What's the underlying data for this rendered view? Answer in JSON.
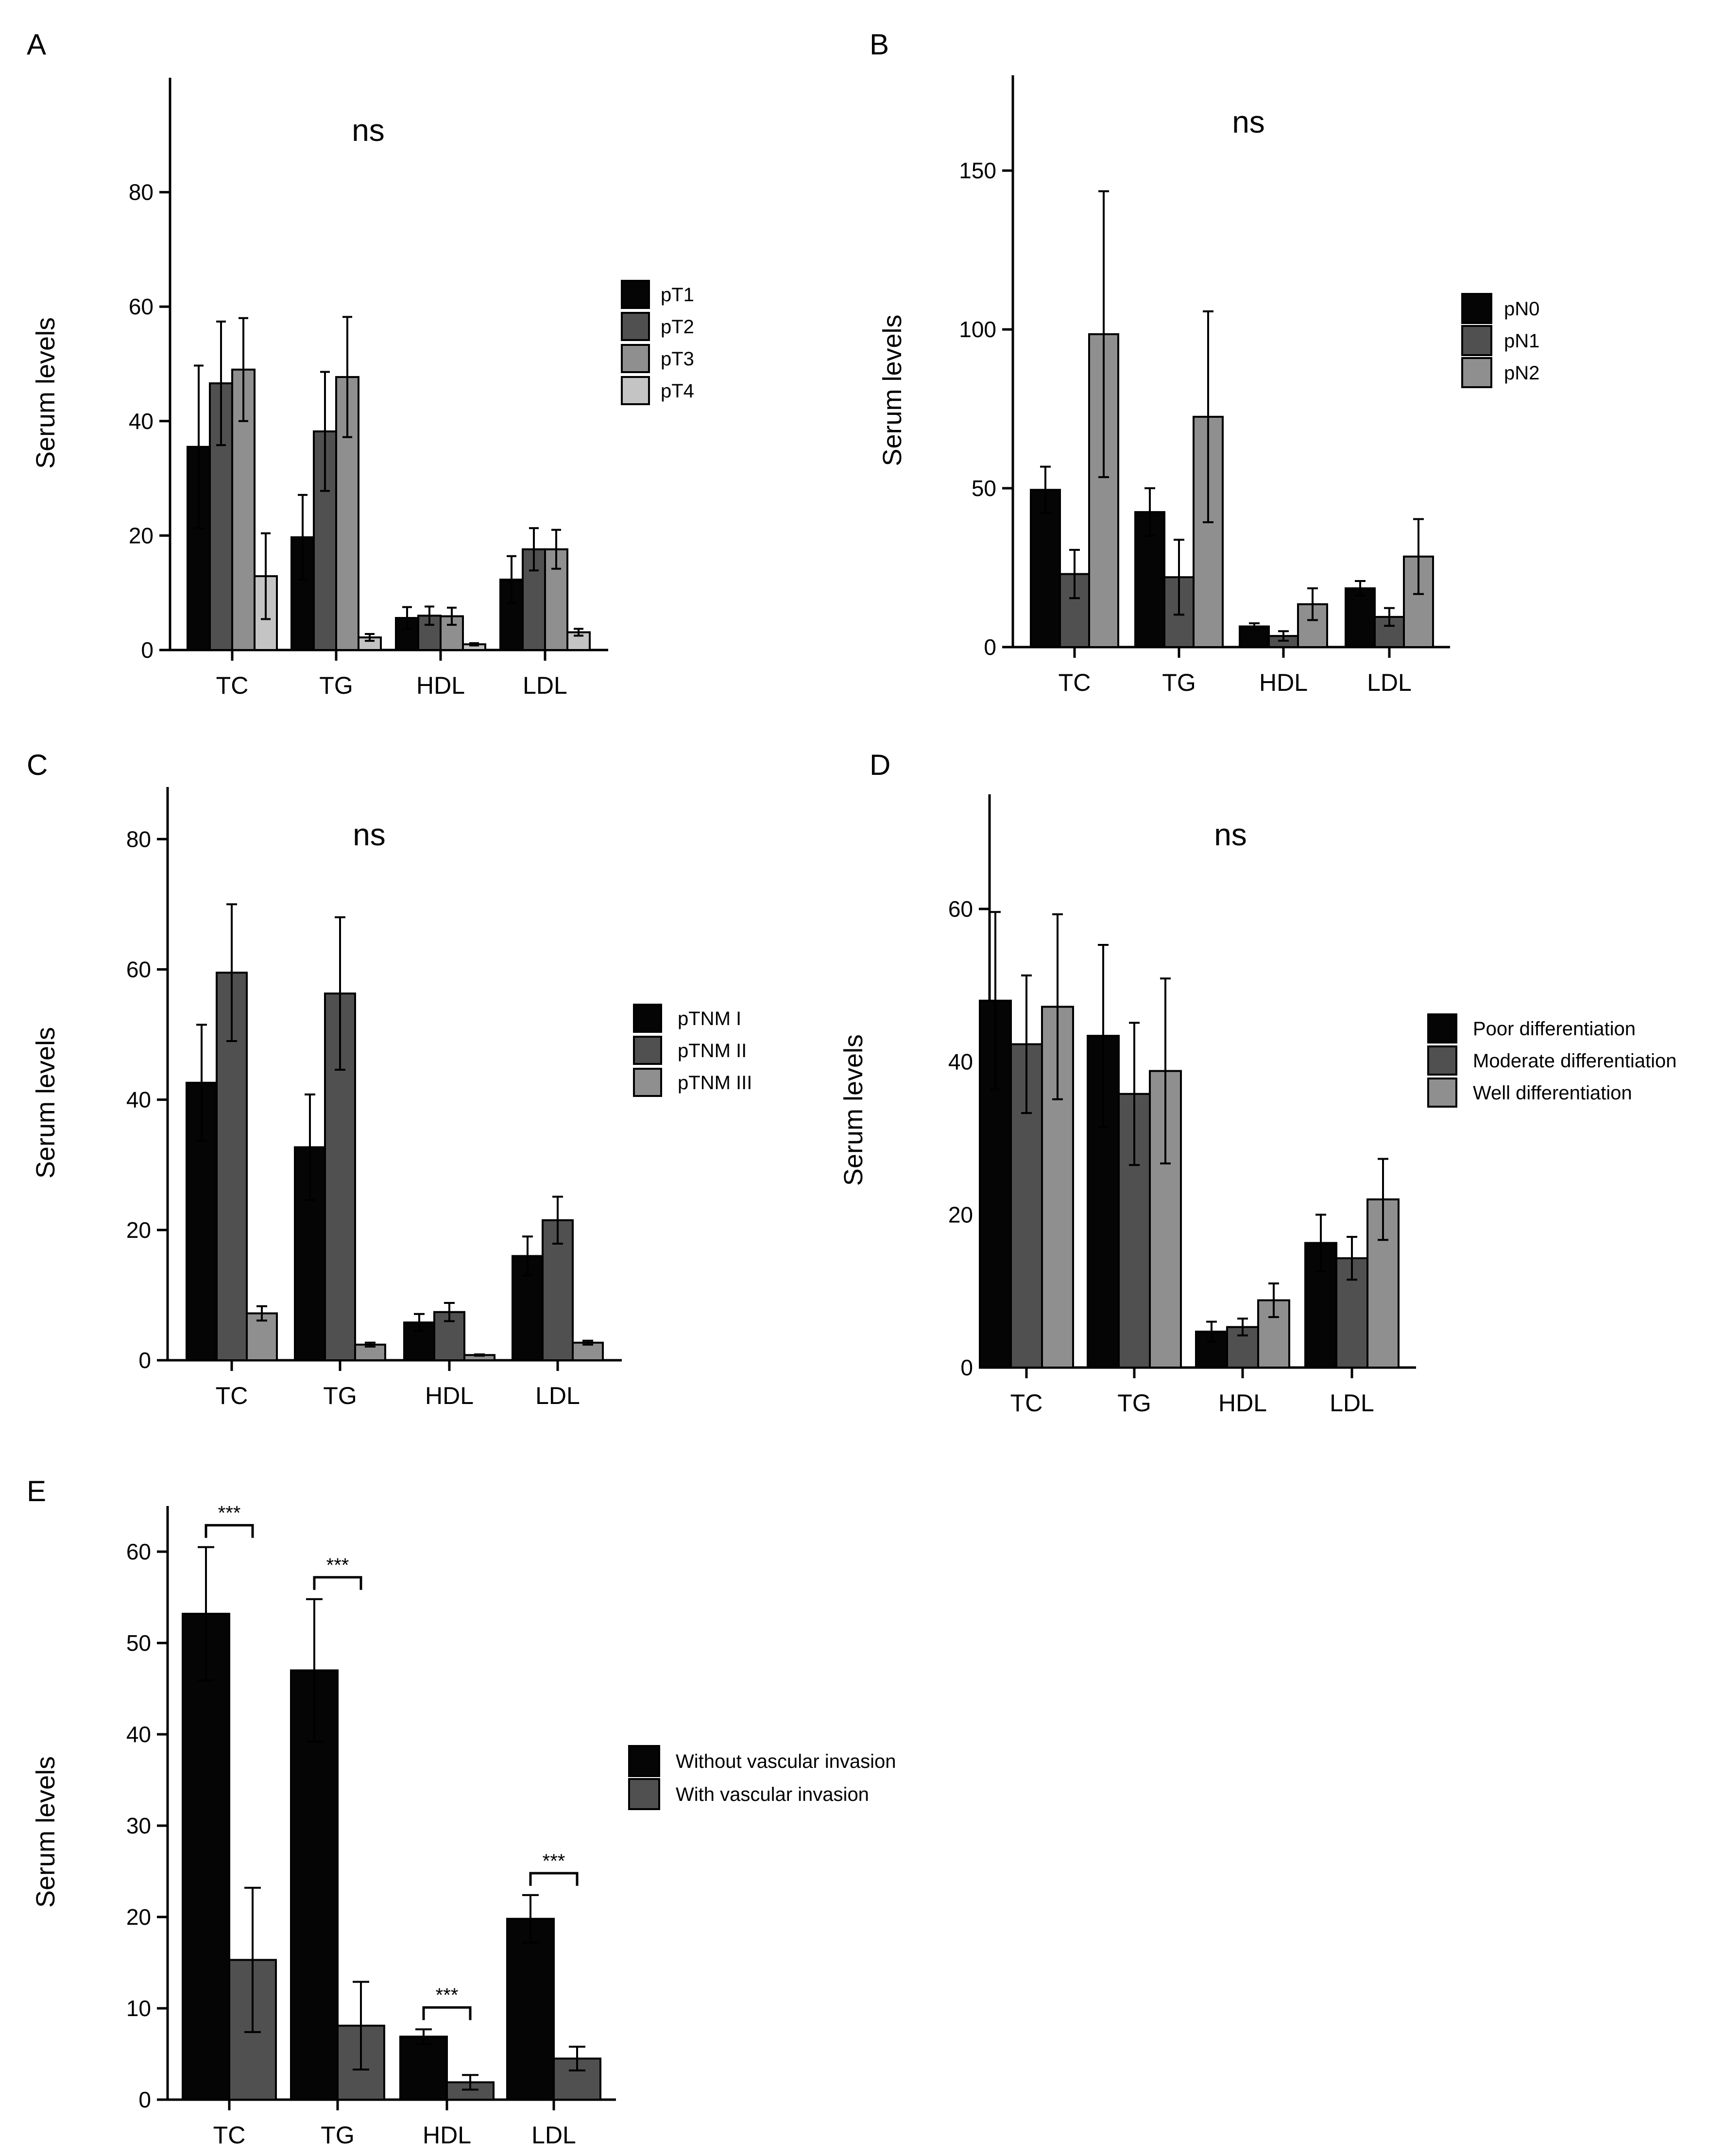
{
  "series_colors": [
    "#050505",
    "#505050",
    "#8f8f8f",
    "#c4c4c4"
  ],
  "panels": [
    {
      "letter": "A",
      "ns": "ns",
      "chart_data": {
        "type": "bar",
        "ylabel": "Serum levels",
        "ylim": [
          0,
          100
        ],
        "yticks": [
          0,
          20,
          40,
          60,
          80
        ],
        "categories": [
          "TC",
          "TG",
          "HDL",
          "LDL"
        ],
        "series": [
          {
            "name": "pT1",
            "values": [
              35.5,
              19.7,
              5.6,
              12.3
            ],
            "errors": [
              14.2,
              7.4,
              1.9,
              4.1
            ]
          },
          {
            "name": "pT2",
            "values": [
              46.6,
              38.2,
              6.0,
              17.6
            ],
            "errors": [
              10.8,
              10.4,
              1.6,
              3.7
            ]
          },
          {
            "name": "pT3",
            "values": [
              49.0,
              47.7,
              5.9,
              17.6
            ],
            "errors": [
              9.0,
              10.5,
              1.5,
              3.4
            ]
          },
          {
            "name": "pT4",
            "values": [
              12.9,
              2.2,
              1.0,
              3.1
            ],
            "errors": [
              7.5,
              0.6,
              0.2,
              0.6
            ]
          }
        ]
      }
    },
    {
      "letter": "B",
      "ns": "ns",
      "chart_data": {
        "type": "bar",
        "ylabel": "Serum levels",
        "ylim": [
          0,
          180
        ],
        "yticks": [
          0,
          50,
          100,
          150
        ],
        "categories": [
          "TC",
          "TG",
          "HDL",
          "LDL"
        ],
        "series": [
          {
            "name": "pN0",
            "values": [
              49.5,
              42.5,
              6.5,
              18.5
            ],
            "errors": [
              7.3,
              7.5,
              1.0,
              2.3
            ]
          },
          {
            "name": "pN1",
            "values": [
              23.0,
              22.0,
              3.5,
              9.5
            ],
            "errors": [
              7.6,
              11.8,
              1.5,
              2.8
            ]
          },
          {
            "name": "pN2",
            "values": [
              98.5,
              72.5,
              13.5,
              28.5
            ],
            "errors": [
              45.0,
              33.2,
              5.0,
              11.8
            ]
          }
        ]
      }
    },
    {
      "letter": "C",
      "ns": "ns",
      "chart_data": {
        "type": "bar",
        "ylabel": "Serum levels",
        "ylim": [
          0,
          88
        ],
        "yticks": [
          0,
          20,
          40,
          60,
          80
        ],
        "categories": [
          "TC",
          "TG",
          "HDL",
          "LDL"
        ],
        "series": [
          {
            "name": "pTNM I",
            "values": [
              42.6,
              32.7,
              5.8,
              16.0
            ],
            "errors": [
              8.9,
              8.1,
              1.3,
              3.0
            ]
          },
          {
            "name": "pTNM II",
            "values": [
              59.5,
              56.3,
              7.4,
              21.5
            ],
            "errors": [
              10.5,
              11.7,
              1.4,
              3.6
            ]
          },
          {
            "name": "pTNM III",
            "values": [
              7.2,
              2.4,
              0.8,
              2.7
            ],
            "errors": [
              1.1,
              0.3,
              0.1,
              0.3
            ]
          }
        ]
      }
    },
    {
      "letter": "D",
      "ns": "ns",
      "chart_data": {
        "type": "bar",
        "ylabel": "Serum levels",
        "ylim": [
          0,
          75
        ],
        "yticks": [
          0,
          20,
          40,
          60
        ],
        "categories": [
          "TC",
          "TG",
          "HDL",
          "LDL"
        ],
        "series": [
          {
            "name": "Poor differentiation",
            "values": [
              48.0,
              43.4,
              4.7,
              16.3
            ],
            "errors": [
              11.6,
              11.9,
              1.3,
              3.7
            ]
          },
          {
            "name": "Moderate differentiation",
            "values": [
              42.3,
              35.8,
              5.3,
              14.3
            ],
            "errors": [
              9.0,
              9.3,
              1.1,
              2.8
            ]
          },
          {
            "name": "Well differentiation",
            "values": [
              47.2,
              38.8,
              8.8,
              22.0
            ],
            "errors": [
              12.1,
              12.1,
              2.2,
              5.3
            ]
          }
        ]
      }
    },
    {
      "letter": "E",
      "chart_data": {
        "type": "bar",
        "ylabel": "Serum levels",
        "ylim": [
          0,
          65
        ],
        "yticks": [
          0,
          10,
          20,
          30,
          40,
          50,
          60
        ],
        "categories": [
          "TC",
          "TG",
          "HDL",
          "LDL"
        ],
        "significance": [
          "***",
          "***",
          "***",
          "***"
        ],
        "series": [
          {
            "name": "Without vascular invasion",
            "values": [
              53.2,
              47.0,
              6.9,
              19.8
            ],
            "errors": [
              7.3,
              7.8,
              0.8,
              2.6
            ]
          },
          {
            "name": "With vascular invasion",
            "values": [
              15.3,
              8.1,
              1.9,
              4.5
            ],
            "errors": [
              7.9,
              4.8,
              0.8,
              1.3
            ]
          }
        ]
      }
    }
  ]
}
